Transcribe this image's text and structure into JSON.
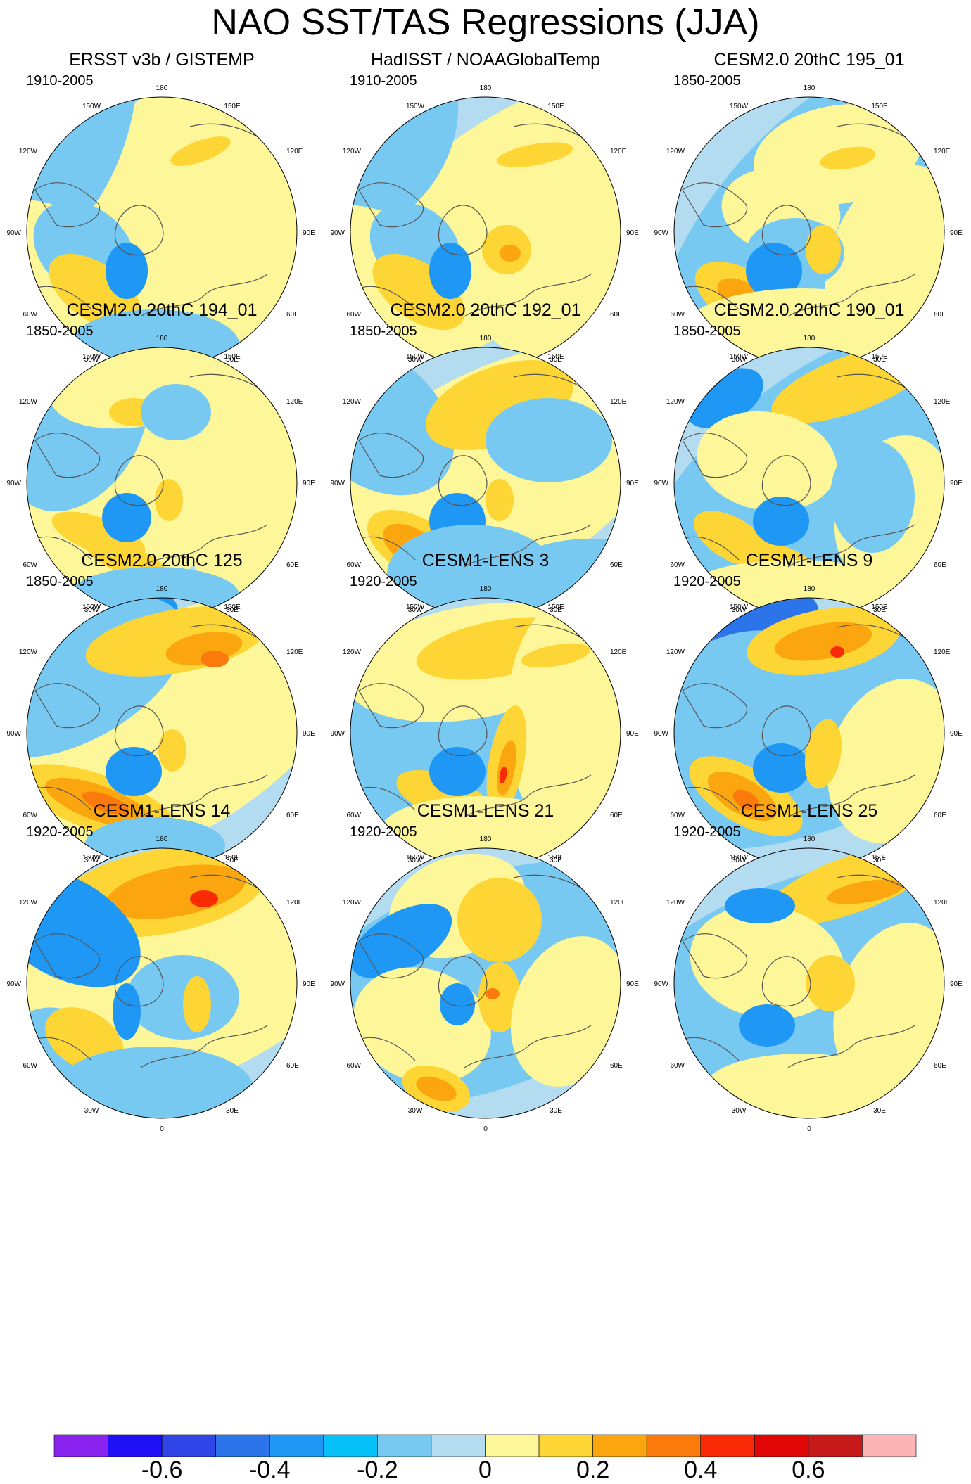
{
  "title": "NAO SST/TAS Regressions (JJA)",
  "panels": [
    {
      "title": "ERSST v3b / GISTEMP",
      "period": "1910-2005"
    },
    {
      "title": "HadISST / NOAAGlobalTemp",
      "period": "1910-2005"
    },
    {
      "title": "CESM2.0 20thC 195_01",
      "period": "1850-2005"
    },
    {
      "title": "CESM2.0 20thC 194_01",
      "period": "1850-2005"
    },
    {
      "title": "CESM2.0 20thC 192_01",
      "period": "1850-2005"
    },
    {
      "title": "CESM2.0 20thC 190_01",
      "period": "1850-2005"
    },
    {
      "title": "CESM2.0 20thC 125",
      "period": "1850-2005"
    },
    {
      "title": "CESM1-LENS 3",
      "period": "1920-2005"
    },
    {
      "title": "CESM1-LENS 9",
      "period": "1920-2005"
    },
    {
      "title": "CESM1-LENS 14",
      "period": "1920-2005"
    },
    {
      "title": "CESM1-LENS 21",
      "period": "1920-2005"
    },
    {
      "title": "CESM1-LENS 25",
      "period": "1920-2005"
    }
  ],
  "longitude_labels": {
    "top": "180",
    "top_left": "150W",
    "top_right": "150E",
    "upper_left": "120W",
    "upper_right": "120E",
    "left": "90W",
    "right": "90E",
    "lower_left": "60W",
    "lower_right": "60E",
    "bottom_left": "30W",
    "bottom_right": "30E",
    "bottom": "0"
  },
  "colorbar": {
    "colors": [
      "#8a22f0",
      "#1f10f5",
      "#2f45e8",
      "#2c74ea",
      "#1f97f5",
      "#05c1f7",
      "#78c9f2",
      "#b4dcf0",
      "#fdf799",
      "#fdd535",
      "#fca60f",
      "#fb7a0c",
      "#f92b07",
      "#e00606",
      "#c61a1a",
      "#fdb4b4"
    ],
    "labels": [
      "-0.6",
      "-0.4",
      "-0.2",
      "0",
      "0.2",
      "0.4",
      "0.6"
    ],
    "label_values": [
      -0.6,
      -0.4,
      -0.2,
      0,
      0.2,
      0.4,
      0.6
    ]
  }
}
